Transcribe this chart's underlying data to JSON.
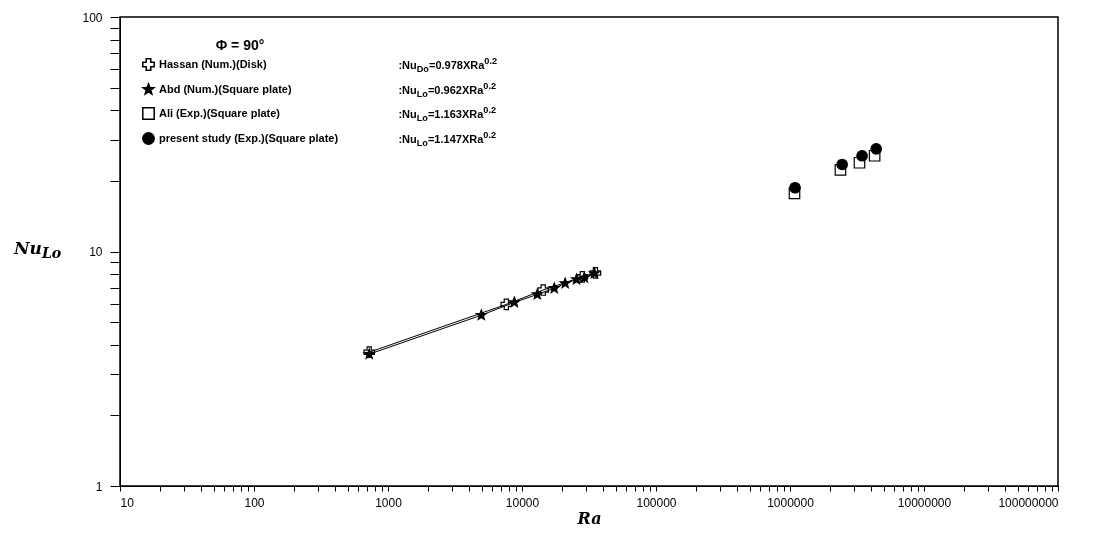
{
  "chart_data": {
    "type": "line",
    "xlabel": "Ra",
    "ylabel": "Nu$_{Lo}$",
    "legend_title": "Φ = 90°",
    "log": "xy",
    "grid": false,
    "legend": "top left",
    "xlim": [
      10,
      100000000
    ],
    "ylim": [
      1,
      100
    ],
    "xticks": [
      10,
      {
        "value": 20,
        "label": null
      },
      {
        "value": 30,
        "label": null
      },
      {
        "value": 40,
        "label": null
      },
      {
        "value": 50,
        "label": null
      },
      {
        "value": 60,
        "label": null
      },
      {
        "value": 70,
        "label": null
      },
      {
        "value": 80,
        "label": null
      },
      {
        "value": 90,
        "label": null
      },
      100,
      {
        "value": 200,
        "label": null
      },
      {
        "value": 300,
        "label": null
      },
      {
        "value": 400,
        "label": null
      },
      {
        "value": 500,
        "label": null
      },
      {
        "value": 600,
        "label": null
      },
      {
        "value": 700,
        "label": null
      },
      {
        "value": 800,
        "label": null
      },
      {
        "value": 900,
        "label": null
      },
      1000,
      {
        "value": 2000,
        "label": null
      },
      {
        "value": 3000,
        "label": null
      },
      {
        "value": 4000,
        "label": null
      },
      {
        "value": 5000,
        "label": null
      },
      {
        "value": 6000,
        "label": null
      },
      {
        "value": 7000,
        "label": null
      },
      {
        "value": 8000,
        "label": null
      },
      {
        "value": 9000,
        "label": null
      },
      10000,
      {
        "value": 20000,
        "label": null
      },
      {
        "value": 30000,
        "label": null
      },
      {
        "value": 40000,
        "label": null
      },
      {
        "value": 50000,
        "label": null
      },
      {
        "value": 60000,
        "label": null
      },
      {
        "value": 70000,
        "label": null
      },
      {
        "value": 80000,
        "label": null
      },
      {
        "value": 90000,
        "label": null
      },
      100000,
      {
        "value": 200000,
        "label": null
      },
      {
        "value": 300000,
        "label": null
      },
      {
        "value": 400000,
        "label": null
      },
      {
        "value": 500000,
        "label": null
      },
      {
        "value": 600000,
        "label": null
      },
      {
        "value": 700000,
        "label": null
      },
      {
        "value": 800000,
        "label": null
      },
      {
        "value": 900000,
        "label": null
      },
      1000000,
      {
        "value": 2000000,
        "label": null
      },
      {
        "value": 3000000,
        "label": null
      },
      {
        "value": 4000000,
        "label": null
      },
      {
        "value": 5000000,
        "label": null
      },
      {
        "value": 6000000,
        "label": null
      },
      {
        "value": 7000000,
        "label": null
      },
      {
        "value": 8000000,
        "label": null
      },
      {
        "value": 9000000,
        "label": null
      },
      10000000,
      {
        "value": 20000000,
        "label": null
      },
      {
        "value": 30000000,
        "label": null
      },
      {
        "value": 40000000,
        "label": null
      },
      {
        "value": 50000000,
        "label": null
      },
      {
        "value": 60000000,
        "label": null
      },
      {
        "value": 70000000,
        "label": null
      },
      {
        "value": 80000000,
        "label": null
      },
      {
        "value": 90000000,
        "label": null
      },
      100000000
    ],
    "yticks": [
      1,
      {
        "value": 2,
        "label": null
      },
      {
        "value": 3,
        "label": null
      },
      {
        "value": 4,
        "label": null
      },
      {
        "value": 5,
        "label": null
      },
      {
        "value": 6,
        "label": null
      },
      {
        "value": 7,
        "label": null
      },
      {
        "value": 8,
        "label": null
      },
      {
        "value": 9,
        "label": null
      },
      10,
      {
        "value": 20,
        "label": null
      },
      {
        "value": 30,
        "label": null
      },
      {
        "value": 40,
        "label": null
      },
      {
        "value": 50,
        "label": null
      },
      {
        "value": 60,
        "label": null
      },
      {
        "value": 70,
        "label": null
      },
      {
        "value": 80,
        "label": null
      },
      {
        "value": 90,
        "label": null
      },
      100
    ],
    "annotations": [
      ":Nu$_{Do}$=0.978XRa$^{0.2}$",
      ":Nu$_{Lo}$=0.962XRa$^{0.2}$",
      ":Nu$_{Lo}$=1.163XRa$^{0.2}$",
      ":Nu$_{Lo}$=1.147XRa$^{0.2}$"
    ],
    "series": [
      {
        "name": "Hassan (Num.)(Disk)",
        "type": "line",
        "marker": "cross",
        "color": "#000000",
        "x": [
          724,
          7640,
          14400,
          28200,
          35300
        ],
        "values": [
          3.72,
          5.95,
          6.85,
          7.8,
          8.1
        ]
      },
      {
        "name": "Abd (Num.)(Square plate)",
        "type": "line",
        "marker": "star",
        "color": "#000000",
        "x": [
          724,
          4970,
          8770,
          13000,
          17400,
          21000,
          25500,
          29200,
          34700
        ],
        "values": [
          3.65,
          5.35,
          6.07,
          6.56,
          6.97,
          7.31,
          7.6,
          7.74,
          8.06
        ]
      },
      {
        "name": "Ali (Exp.)(Square plate)",
        "type": "scatter",
        "marker": "square",
        "color": "#000000",
        "x": [
          1080000,
          2380000,
          3300000,
          4280000
        ],
        "values": [
          17.7,
          22.3,
          23.9,
          25.6
        ]
      },
      {
        "name": "present study (Exp.)(Square plate)",
        "type": "scatter",
        "marker": "circle",
        "color": "#000000",
        "x": [
          1090000,
          2450000,
          3450000,
          4400000
        ],
        "values": [
          18.7,
          23.5,
          25.6,
          27.4
        ]
      }
    ]
  }
}
